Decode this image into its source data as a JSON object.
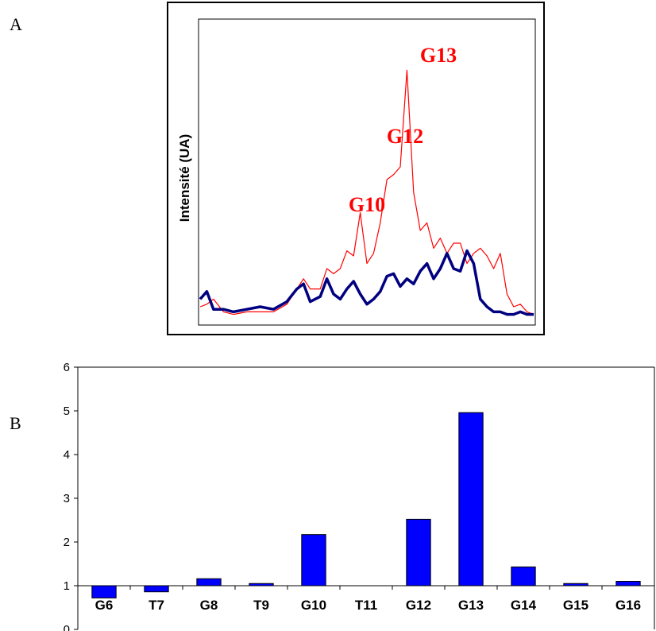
{
  "panel_labels": {
    "a": "A",
    "b": "B"
  },
  "chart_data": [
    {
      "type": "line",
      "ylabel": "Intensité (UA)",
      "xlabel": "",
      "grid": false,
      "legend": "none",
      "annotations": [
        "G10",
        "G12",
        "G13"
      ],
      "series": [
        {
          "color": "#ff0000",
          "x": [
            0,
            0.02,
            0.04,
            0.07,
            0.1,
            0.14,
            0.18,
            0.22,
            0.26,
            0.29,
            0.31,
            0.33,
            0.36,
            0.38,
            0.4,
            0.42,
            0.44,
            0.46,
            0.48,
            0.5,
            0.52,
            0.54,
            0.56,
            0.58,
            0.6,
            0.62,
            0.64,
            0.66,
            0.68,
            0.7,
            0.72,
            0.74,
            0.76,
            0.78,
            0.8,
            0.82,
            0.84,
            0.86,
            0.88,
            0.9,
            0.92,
            0.94,
            0.96,
            0.98,
            1.0
          ],
          "y": [
            0.05,
            0.06,
            0.08,
            0.03,
            0.02,
            0.03,
            0.03,
            0.03,
            0.06,
            0.12,
            0.16,
            0.12,
            0.12,
            0.2,
            0.18,
            0.2,
            0.27,
            0.25,
            0.42,
            0.22,
            0.26,
            0.38,
            0.55,
            0.57,
            0.6,
            0.98,
            0.5,
            0.35,
            0.38,
            0.28,
            0.32,
            0.26,
            0.3,
            0.3,
            0.22,
            0.26,
            0.28,
            0.25,
            0.2,
            0.26,
            0.1,
            0.05,
            0.06,
            0.03,
            0.02
          ]
        },
        {
          "color": "#000080",
          "x": [
            0,
            0.02,
            0.04,
            0.07,
            0.1,
            0.14,
            0.18,
            0.22,
            0.26,
            0.29,
            0.31,
            0.33,
            0.36,
            0.38,
            0.4,
            0.42,
            0.44,
            0.46,
            0.48,
            0.5,
            0.52,
            0.54,
            0.56,
            0.58,
            0.6,
            0.62,
            0.64,
            0.66,
            0.68,
            0.7,
            0.72,
            0.74,
            0.76,
            0.78,
            0.8,
            0.82,
            0.84,
            0.86,
            0.88,
            0.9,
            0.92,
            0.94,
            0.96,
            0.98,
            1.0
          ],
          "y": [
            0.08,
            0.11,
            0.04,
            0.04,
            0.03,
            0.04,
            0.05,
            0.04,
            0.07,
            0.12,
            0.14,
            0.07,
            0.09,
            0.16,
            0.1,
            0.08,
            0.12,
            0.15,
            0.1,
            0.06,
            0.08,
            0.11,
            0.17,
            0.18,
            0.13,
            0.16,
            0.14,
            0.19,
            0.22,
            0.16,
            0.2,
            0.26,
            0.2,
            0.19,
            0.27,
            0.22,
            0.08,
            0.05,
            0.03,
            0.03,
            0.02,
            0.02,
            0.03,
            0.02,
            0.02
          ]
        }
      ]
    },
    {
      "type": "bar",
      "categories": [
        "G6",
        "T7",
        "G8",
        "T9",
        "G10",
        "T11",
        "G12",
        "G13",
        "G14",
        "G15",
        "G16"
      ],
      "values": [
        0.72,
        0.86,
        1.16,
        1.05,
        2.17,
        1.0,
        2.52,
        4.96,
        1.43,
        1.05,
        1.1
      ],
      "baseline": 1,
      "ylim": [
        0,
        6
      ],
      "yticks": [
        "0",
        "1",
        "2",
        "3",
        "4",
        "5",
        "6"
      ],
      "bar_color": "#0000ff",
      "grid": false,
      "legend": "none"
    }
  ]
}
